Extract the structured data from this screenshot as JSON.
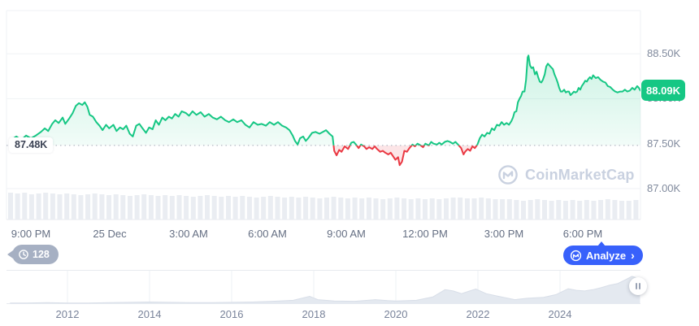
{
  "watermark": {
    "text": "CoinMarketCap"
  },
  "badges": {
    "current_price": "88.09K",
    "open_price": "87.48K",
    "history_count": "128"
  },
  "analyze_button": {
    "label": "Analyze",
    "chevron": "›"
  },
  "colors": {
    "green": "#16c784",
    "red": "#ea3943",
    "blue": "#3861fb",
    "grid": "#eff2f5",
    "frame": "#e7eaef",
    "dotted": "#b4bac4",
    "axis_text": "#808a9d",
    "time_text": "#656f83",
    "volume": "#eaedf2",
    "nav_fill": "#e4e9f0",
    "nav_stroke": "#d8dee8",
    "nav_grid": "#eef1f5",
    "watermark": "#c9d1e0",
    "badge_gray": "#a6b0c3",
    "green_fill_top": "rgba(22,199,132,0.22)",
    "green_fill_bottom": "rgba(22,199,132,0.02)",
    "red_fill": "rgba(234,57,67,0.13)"
  },
  "chart_data": [
    {
      "name": "price-24h",
      "type": "line",
      "title": "",
      "unit": "USD (thousands)",
      "baseline_price": 87.48,
      "current_price": 88.09,
      "high": 88.48,
      "low": 87.26,
      "ylim": [
        86.85,
        89.0
      ],
      "y_ticks": [
        {
          "label": "88.50K",
          "price": 88.5
        },
        {
          "label": "88.00K",
          "price": 88.0
        },
        {
          "label": "87.50K",
          "price": 87.5
        },
        {
          "label": "87.00K",
          "price": 87.0
        }
      ],
      "x_ticks": [
        {
          "label": "9:00 PM",
          "hour": 0.71
        },
        {
          "label": "25 Dec",
          "hour": 3.71
        },
        {
          "label": "3:00 AM",
          "hour": 6.71
        },
        {
          "label": "6:00 AM",
          "hour": 9.71
        },
        {
          "label": "9:00 AM",
          "hour": 12.71
        },
        {
          "label": "12:00 PM",
          "hour": 15.71
        },
        {
          "label": "3:00 PM",
          "hour": 18.71
        },
        {
          "label": "6:00 PM",
          "hour": 21.71
        }
      ],
      "points": [
        [
          0,
          87.55
        ],
        [
          0.16,
          87.58
        ],
        [
          0.34,
          87.54
        ],
        [
          0.53,
          87.59
        ],
        [
          0.71,
          87.56
        ],
        [
          0.9,
          87.59
        ],
        [
          1.09,
          87.63
        ],
        [
          1.24,
          87.67
        ],
        [
          1.37,
          87.64
        ],
        [
          1.52,
          87.72
        ],
        [
          1.64,
          87.76
        ],
        [
          1.77,
          87.73
        ],
        [
          1.92,
          87.79
        ],
        [
          2.02,
          87.72
        ],
        [
          2.17,
          87.78
        ],
        [
          2.3,
          87.84
        ],
        [
          2.42,
          87.92
        ],
        [
          2.54,
          87.95
        ],
        [
          2.67,
          87.93
        ],
        [
          2.76,
          87.96
        ],
        [
          2.86,
          87.91
        ],
        [
          2.95,
          87.82
        ],
        [
          3.07,
          87.8
        ],
        [
          3.2,
          87.74
        ],
        [
          3.32,
          87.7
        ],
        [
          3.44,
          87.65
        ],
        [
          3.57,
          87.71
        ],
        [
          3.69,
          87.67
        ],
        [
          3.85,
          87.71
        ],
        [
          3.97,
          87.64
        ],
        [
          4.1,
          87.68
        ],
        [
          4.22,
          87.66
        ],
        [
          4.34,
          87.7
        ],
        [
          4.47,
          87.61
        ],
        [
          4.59,
          87.58
        ],
        [
          4.72,
          87.7
        ],
        [
          4.84,
          87.72
        ],
        [
          4.96,
          87.67
        ],
        [
          5.09,
          87.62
        ],
        [
          5.21,
          87.68
        ],
        [
          5.34,
          87.66
        ],
        [
          5.46,
          87.76
        ],
        [
          5.58,
          87.71
        ],
        [
          5.71,
          87.79
        ],
        [
          5.83,
          87.76
        ],
        [
          5.96,
          87.8
        ],
        [
          6.08,
          87.78
        ],
        [
          6.2,
          87.83
        ],
        [
          6.33,
          87.8
        ],
        [
          6.45,
          87.86
        ],
        [
          6.61,
          87.84
        ],
        [
          6.73,
          87.81
        ],
        [
          6.86,
          87.86
        ],
        [
          7.01,
          87.82
        ],
        [
          7.17,
          87.85
        ],
        [
          7.32,
          87.8
        ],
        [
          7.48,
          87.83
        ],
        [
          7.63,
          87.79
        ],
        [
          7.79,
          87.77
        ],
        [
          7.94,
          87.8
        ],
        [
          8.1,
          87.76
        ],
        [
          8.25,
          87.74
        ],
        [
          8.41,
          87.77
        ],
        [
          8.56,
          87.74
        ],
        [
          8.72,
          87.76
        ],
        [
          8.87,
          87.71
        ],
        [
          9.03,
          87.68
        ],
        [
          9.18,
          87.74
        ],
        [
          9.34,
          87.71
        ],
        [
          9.49,
          87.72
        ],
        [
          9.65,
          87.7
        ],
        [
          9.8,
          87.74
        ],
        [
          9.96,
          87.71
        ],
        [
          10.11,
          87.74
        ],
        [
          10.27,
          87.7
        ],
        [
          10.42,
          87.68
        ],
        [
          10.55,
          87.65
        ],
        [
          10.67,
          87.59
        ],
        [
          10.76,
          87.53
        ],
        [
          10.86,
          87.49
        ],
        [
          10.95,
          87.56
        ],
        [
          11.07,
          87.58
        ],
        [
          11.17,
          87.53
        ],
        [
          11.26,
          87.56
        ],
        [
          11.41,
          87.62
        ],
        [
          11.54,
          87.63
        ],
        [
          11.69,
          87.61
        ],
        [
          11.82,
          87.63
        ],
        [
          11.94,
          87.65
        ],
        [
          12.07,
          87.61
        ],
        [
          12.19,
          87.58
        ],
        [
          12.25,
          87.42
        ],
        [
          12.34,
          87.37
        ],
        [
          12.44,
          87.43
        ],
        [
          12.53,
          87.41
        ],
        [
          12.65,
          87.47
        ],
        [
          12.78,
          87.44
        ],
        [
          12.9,
          87.51
        ],
        [
          12.99,
          87.52
        ],
        [
          13.08,
          87.49
        ],
        [
          13.18,
          87.45
        ],
        [
          13.27,
          87.49
        ],
        [
          13.39,
          87.47
        ],
        [
          13.48,
          87.44
        ],
        [
          13.58,
          87.46
        ],
        [
          13.7,
          87.44
        ],
        [
          13.79,
          87.47
        ],
        [
          13.88,
          87.44
        ],
        [
          14,
          87.41
        ],
        [
          14.1,
          87.42
        ],
        [
          14.19,
          87.4
        ],
        [
          14.31,
          87.38
        ],
        [
          14.4,
          87.4
        ],
        [
          14.49,
          87.36
        ],
        [
          14.58,
          87.32
        ],
        [
          14.68,
          87.35
        ],
        [
          14.74,
          87.26
        ],
        [
          14.83,
          87.3
        ],
        [
          14.92,
          87.42
        ],
        [
          15.02,
          87.41
        ],
        [
          15.11,
          87.45
        ],
        [
          15.23,
          87.49
        ],
        [
          15.32,
          87.47
        ],
        [
          15.42,
          87.5
        ],
        [
          15.54,
          87.48
        ],
        [
          15.63,
          87.46
        ],
        [
          15.72,
          87.5
        ],
        [
          15.85,
          87.48
        ],
        [
          15.94,
          87.52
        ],
        [
          16.03,
          87.5
        ],
        [
          16.16,
          87.49
        ],
        [
          16.25,
          87.51
        ],
        [
          16.34,
          87.49
        ],
        [
          16.46,
          87.52
        ],
        [
          16.56,
          87.53
        ],
        [
          16.65,
          87.52
        ],
        [
          16.77,
          87.5
        ],
        [
          16.86,
          87.52
        ],
        [
          16.96,
          87.49
        ],
        [
          17.08,
          87.45
        ],
        [
          17.17,
          87.38
        ],
        [
          17.23,
          87.41
        ],
        [
          17.33,
          87.44
        ],
        [
          17.42,
          87.42
        ],
        [
          17.51,
          87.47
        ],
        [
          17.6,
          87.45
        ],
        [
          17.7,
          87.49
        ],
        [
          17.79,
          87.56
        ],
        [
          17.88,
          87.6
        ],
        [
          17.97,
          87.58
        ],
        [
          18.07,
          87.62
        ],
        [
          18.16,
          87.61
        ],
        [
          18.25,
          87.67
        ],
        [
          18.34,
          87.65
        ],
        [
          18.44,
          87.71
        ],
        [
          18.53,
          87.7
        ],
        [
          18.62,
          87.74
        ],
        [
          18.71,
          87.71
        ],
        [
          18.81,
          87.73
        ],
        [
          18.9,
          87.71
        ],
        [
          18.99,
          87.75
        ],
        [
          19.05,
          87.79
        ],
        [
          19.11,
          87.85
        ],
        [
          19.18,
          87.86
        ],
        [
          19.24,
          87.96
        ],
        [
          19.3,
          88.0
        ],
        [
          19.36,
          88.03
        ],
        [
          19.42,
          88.08
        ],
        [
          19.49,
          88.08
        ],
        [
          19.55,
          88.21
        ],
        [
          19.61,
          88.46
        ],
        [
          19.64,
          88.48
        ],
        [
          19.7,
          88.37
        ],
        [
          19.76,
          88.34
        ],
        [
          19.82,
          88.35
        ],
        [
          19.89,
          88.27
        ],
        [
          19.95,
          88.3
        ],
        [
          20.01,
          88.24
        ],
        [
          20.07,
          88.19
        ],
        [
          20.13,
          88.18
        ],
        [
          20.19,
          88.21
        ],
        [
          20.26,
          88.27
        ],
        [
          20.32,
          88.36
        ],
        [
          20.38,
          88.39
        ],
        [
          20.44,
          88.37
        ],
        [
          20.5,
          88.35
        ],
        [
          20.57,
          88.33
        ],
        [
          20.63,
          88.27
        ],
        [
          20.69,
          88.23
        ],
        [
          20.75,
          88.18
        ],
        [
          20.81,
          88.12
        ],
        [
          20.87,
          88.08
        ],
        [
          20.93,
          88.08
        ],
        [
          21,
          88.1
        ],
        [
          21.06,
          88.07
        ],
        [
          21.12,
          88.08
        ],
        [
          21.18,
          88.08
        ],
        [
          21.24,
          88.04
        ],
        [
          21.31,
          88.06
        ],
        [
          21.37,
          88.08
        ],
        [
          21.43,
          88.07
        ],
        [
          21.49,
          88.08
        ],
        [
          21.55,
          88.12
        ],
        [
          21.61,
          88.1
        ],
        [
          21.67,
          88.14
        ],
        [
          21.74,
          88.17
        ],
        [
          21.8,
          88.2
        ],
        [
          21.86,
          88.19
        ],
        [
          21.92,
          88.22
        ],
        [
          21.98,
          88.24
        ],
        [
          22.04,
          88.22
        ],
        [
          22.1,
          88.26
        ],
        [
          22.2,
          88.23
        ],
        [
          22.29,
          88.24
        ],
        [
          22.38,
          88.21
        ],
        [
          22.48,
          88.19
        ],
        [
          22.57,
          88.18
        ],
        [
          22.66,
          88.14
        ],
        [
          22.75,
          88.13
        ],
        [
          22.85,
          88.1
        ],
        [
          22.94,
          88.08
        ],
        [
          23.03,
          88.07
        ],
        [
          23.13,
          88.08
        ],
        [
          23.22,
          88.08
        ],
        [
          23.31,
          88.1
        ],
        [
          23.4,
          88.08
        ],
        [
          23.5,
          88.09
        ],
        [
          23.59,
          88.12
        ],
        [
          23.68,
          88.1
        ],
        [
          23.78,
          88.14
        ],
        [
          23.84,
          88.12
        ],
        [
          23.9,
          88.09
        ]
      ]
    },
    {
      "name": "volume",
      "type": "bar",
      "values": [
        33,
        32,
        33,
        31,
        32,
        33,
        32,
        31,
        32,
        31,
        30,
        31,
        32,
        31,
        30,
        31,
        30,
        29,
        30,
        31,
        30,
        29,
        30,
        29,
        30,
        29,
        28,
        29,
        30,
        29,
        28,
        29,
        28,
        29,
        28,
        27,
        28,
        29,
        28,
        27,
        28,
        27,
        28,
        27,
        26,
        27,
        28,
        27,
        26,
        27,
        26,
        27,
        26,
        25,
        26,
        27,
        26,
        25,
        26,
        25,
        26,
        25,
        26,
        27,
        27,
        26,
        26,
        27,
        26,
        25,
        25,
        25,
        24,
        23,
        24,
        25,
        24,
        23,
        24,
        23,
        24,
        23,
        24,
        23,
        24,
        25,
        24,
        23,
        23,
        24
      ]
    },
    {
      "name": "history-navigator",
      "type": "area",
      "x_ticks": [
        2012,
        2014,
        2016,
        2018,
        2020,
        2022,
        2024
      ],
      "points": [
        [
          2010.6,
          0.02
        ],
        [
          2011,
          0.02
        ],
        [
          2011.5,
          0.03
        ],
        [
          2012,
          0.02
        ],
        [
          2012.5,
          0.02
        ],
        [
          2013,
          0.03
        ],
        [
          2013.5,
          0.04
        ],
        [
          2014,
          0.05
        ],
        [
          2014.5,
          0.04
        ],
        [
          2015,
          0.03
        ],
        [
          2015.5,
          0.03
        ],
        [
          2016,
          0.04
        ],
        [
          2016.5,
          0.05
        ],
        [
          2017,
          0.07
        ],
        [
          2017.5,
          0.1
        ],
        [
          2017.9,
          0.22
        ],
        [
          2018.1,
          0.12
        ],
        [
          2018.5,
          0.08
        ],
        [
          2019,
          0.07
        ],
        [
          2019.5,
          0.12
        ],
        [
          2019.8,
          0.09
        ],
        [
          2020,
          0.08
        ],
        [
          2020.5,
          0.1
        ],
        [
          2020.9,
          0.2
        ],
        [
          2021.2,
          0.42
        ],
        [
          2021.4,
          0.38
        ],
        [
          2021.6,
          0.3
        ],
        [
          2021.8,
          0.38
        ],
        [
          2021.95,
          0.44
        ],
        [
          2022.2,
          0.3
        ],
        [
          2022.5,
          0.22
        ],
        [
          2022.9,
          0.12
        ],
        [
          2023.2,
          0.16
        ],
        [
          2023.6,
          0.19
        ],
        [
          2023.9,
          0.27
        ],
        [
          2024.2,
          0.45
        ],
        [
          2024.4,
          0.4
        ],
        [
          2024.6,
          0.38
        ],
        [
          2024.8,
          0.42
        ],
        [
          2025,
          0.48
        ],
        [
          2025.2,
          0.55
        ],
        [
          2025.4,
          0.6
        ],
        [
          2025.6,
          0.72
        ],
        [
          2025.75,
          0.82
        ],
        [
          2025.85,
          0.78
        ],
        [
          2025.95,
          0.74
        ]
      ]
    }
  ]
}
